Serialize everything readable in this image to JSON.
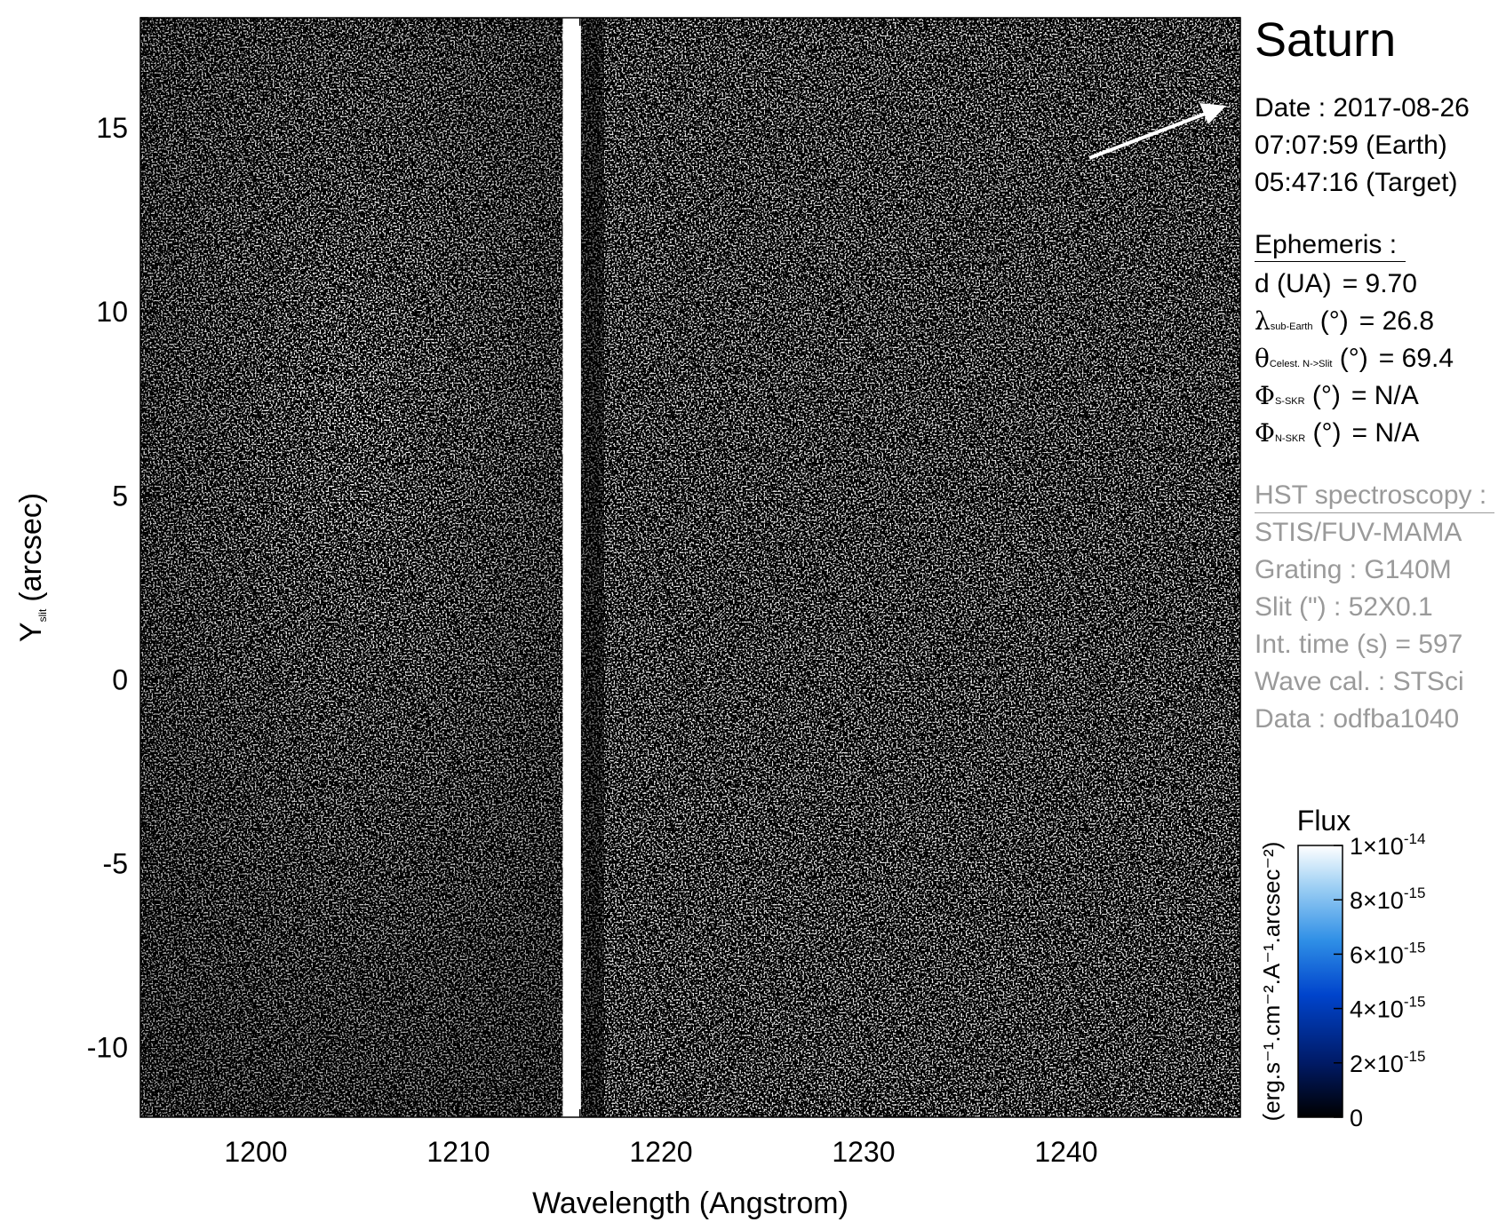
{
  "chart_data": {
    "type": "heatmap",
    "title": "",
    "xlabel": "Wavelength (Angstrom)",
    "ylabel_main": "Y",
    "ylabel_sub": "slit",
    "ylabel_unit": "(arcsec)",
    "xlim": [
      1194.3,
      1248.6
    ],
    "ylim": [
      -11.9,
      18.0
    ],
    "x_major_ticks": [
      1200,
      1210,
      1220,
      1230,
      1240
    ],
    "x_major_tick_labels": [
      "1200",
      "1210",
      "1220",
      "1230",
      "1240"
    ],
    "x_minor_step": 1,
    "y_major_ticks": [
      -10,
      -5,
      0,
      5,
      10,
      15
    ],
    "y_major_tick_labels": [
      "-10",
      "-5",
      "0",
      "5",
      "10",
      "15"
    ],
    "y_minor_step": 1,
    "grid": false,
    "lyman_alpha_band": {
      "x_center": 1215.6,
      "half_width": 0.45
    },
    "colorbar": {
      "title": "Flux",
      "unit_label": "(erg.s⁻¹.cm⁻².A⁻¹.arcsec⁻²)",
      "range": [
        0,
        1e-14
      ],
      "ticks": [
        0,
        2e-15,
        4e-15,
        6e-15,
        8e-15,
        1e-14
      ],
      "tick_labels": [
        {
          "base": "0",
          "exp": ""
        },
        {
          "base": "2×10",
          "exp": "-15"
        },
        {
          "base": "4×10",
          "exp": "-15"
        },
        {
          "base": "6×10",
          "exp": "-15"
        },
        {
          "base": "8×10",
          "exp": "-15"
        },
        {
          "base": "1×10",
          "exp": "-14"
        }
      ],
      "colors": [
        "#000000",
        "#001a66",
        "#0044cc",
        "#2f8fe6",
        "#9fd0f4",
        "#ffffff"
      ]
    }
  },
  "info": {
    "target": "Saturn",
    "date_line": "Date : 2017-08-26",
    "earth_time": "07:07:59 (Earth)",
    "target_time": "05:47:16 (Target)",
    "ephemeris_header": "Ephemeris :",
    "ephemeris": [
      {
        "sym": "d (UA)",
        "sub": "",
        "unit": "",
        "value": "= 9.70"
      },
      {
        "sym": "λ",
        "sub": "sub-Earth",
        "unit": " (°)",
        "value": "= 26.8"
      },
      {
        "sym": "θ",
        "sub": "Celest. N->Slit",
        "unit": " (°)",
        "value": "= 69.4"
      },
      {
        "sym": "Φ",
        "sub": "S-SKR",
        "unit": " (°)",
        "value": "= N/A"
      },
      {
        "sym": "Φ",
        "sub": "N-SKR",
        "unit": " (°)",
        "value": "= N/A"
      }
    ],
    "spectroscopy_header": "HST spectroscopy :",
    "spectroscopy": [
      "STIS/FUV-MAMA",
      "Grating : G140M",
      "Slit (\") : 52X0.1",
      "Int. time (s) = 597",
      "Wave cal. : STSci",
      "Data : odfba1040"
    ]
  }
}
